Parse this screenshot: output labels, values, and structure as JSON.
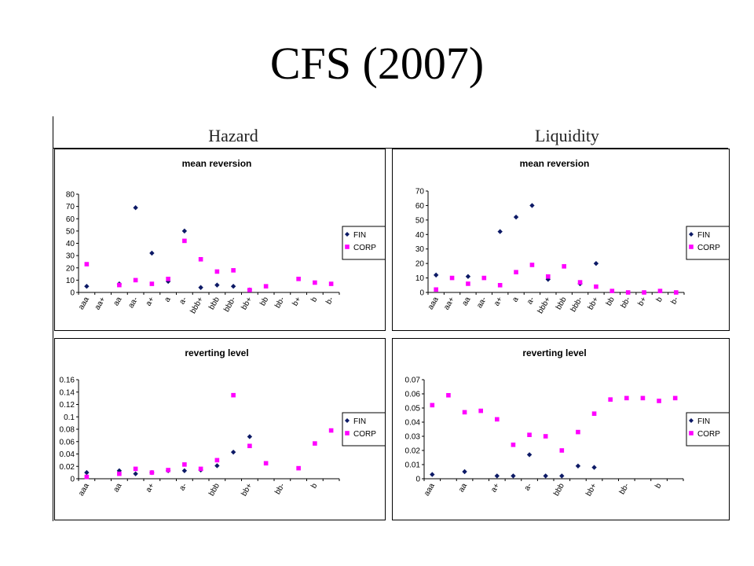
{
  "slide_title": "CFS (2007)",
  "columns": [
    "Hazard",
    "Liquidity"
  ],
  "colors": {
    "FIN": "#0d1a66",
    "CORP": "#ff00ff"
  },
  "chart_data": [
    {
      "id": "hazard-mean-reversion",
      "type": "scatter",
      "title": "mean reversion",
      "categories": [
        "aaa",
        "aa+",
        "aa",
        "aa-",
        "a+",
        "a",
        "a-",
        "bbb+",
        "bbb",
        "bbb-",
        "bb+",
        "bb",
        "bb-",
        "b+",
        "b",
        "b-"
      ],
      "ylim": [
        0,
        80
      ],
      "yticks": [
        0,
        10,
        20,
        30,
        40,
        50,
        60,
        70,
        80
      ],
      "ytick_labels": [
        "0",
        "10",
        "20",
        "30",
        "40",
        "50",
        "60",
        "70",
        "80"
      ],
      "series": [
        {
          "name": "FIN",
          "values": [
            5,
            null,
            7,
            69,
            32,
            9,
            50,
            4,
            6,
            5,
            2,
            null,
            null,
            null,
            null,
            null
          ]
        },
        {
          "name": "CORP",
          "values": [
            23,
            null,
            6,
            10,
            7,
            11,
            42,
            27,
            17,
            18,
            2,
            5,
            null,
            11,
            8,
            7
          ]
        }
      ],
      "legend": "right"
    },
    {
      "id": "liquidity-mean-reversion",
      "type": "scatter",
      "title": "mean reversion",
      "categories": [
        "aaa",
        "aa+",
        "aa",
        "aa-",
        "a+",
        "a",
        "a-",
        "bbb+",
        "bbb",
        "bbb-",
        "bb+",
        "bb",
        "bb-",
        "b+",
        "b",
        "b-"
      ],
      "ylim": [
        0,
        70
      ],
      "yticks": [
        0,
        10,
        20,
        30,
        40,
        50,
        60,
        70
      ],
      "ytick_labels": [
        "0",
        "10",
        "20",
        "30",
        "40",
        "50",
        "60",
        "70"
      ],
      "series": [
        {
          "name": "FIN",
          "values": [
            12,
            null,
            11,
            null,
            42,
            52,
            60,
            9,
            null,
            6,
            20,
            null,
            null,
            null,
            null,
            null
          ]
        },
        {
          "name": "CORP",
          "values": [
            2,
            10,
            6,
            10,
            5,
            14,
            19,
            11,
            18,
            7,
            4,
            1,
            0,
            0,
            1,
            0
          ]
        }
      ],
      "legend": "right"
    },
    {
      "id": "hazard-reverting-level",
      "type": "scatter",
      "title": "reverting level",
      "categories": [
        "aaa",
        "aa+",
        "aa",
        "aa-",
        "a+",
        "a",
        "a-",
        "bbb+",
        "bbb",
        "bbb-",
        "bb+",
        "bb",
        "bb-",
        "b+",
        "b",
        "b-"
      ],
      "xtick_labels": [
        "aaa",
        "",
        "aa",
        "",
        "a+",
        "",
        "a-",
        "",
        "bbb",
        "",
        "bb+",
        "",
        "bb-",
        "",
        "b",
        ""
      ],
      "ylim": [
        0,
        0.16
      ],
      "yticks": [
        0,
        0.02,
        0.04,
        0.06,
        0.08,
        0.1,
        0.12,
        0.14,
        0.16
      ],
      "ytick_labels": [
        "0",
        "0.02",
        "0.04",
        "0.06",
        "0.08",
        "0.1",
        "0.12",
        "0.14",
        "0.16"
      ],
      "series": [
        {
          "name": "FIN",
          "values": [
            0.01,
            null,
            0.013,
            0.008,
            0.01,
            0.013,
            0.013,
            0.014,
            0.021,
            0.043,
            0.068,
            null,
            null,
            null,
            null,
            null
          ]
        },
        {
          "name": "CORP",
          "values": [
            0.003,
            null,
            0.008,
            0.016,
            0.01,
            0.014,
            0.023,
            0.016,
            0.03,
            0.135,
            0.053,
            0.025,
            null,
            0.017,
            0.057,
            0.078
          ]
        }
      ],
      "legend": "right"
    },
    {
      "id": "liquidity-reverting-level",
      "type": "scatter",
      "title": "reverting level",
      "categories": [
        "aaa",
        "aa+",
        "aa",
        "aa-",
        "a+",
        "a",
        "a-",
        "bbb+",
        "bbb",
        "bbb-",
        "bb+",
        "bb",
        "bb-",
        "b+",
        "b",
        "b-"
      ],
      "xtick_labels": [
        "aaa",
        "",
        "aa",
        "",
        "a+",
        "",
        "a-",
        "",
        "bbb",
        "",
        "bb+",
        "",
        "bb-",
        "",
        "b",
        ""
      ],
      "ylim": [
        0,
        0.07
      ],
      "yticks": [
        0,
        0.01,
        0.02,
        0.03,
        0.04,
        0.05,
        0.06,
        0.07
      ],
      "ytick_labels": [
        "0",
        "0.01",
        "0.02",
        "0.03",
        "0.04",
        "0.05",
        "0.06",
        "0.07"
      ],
      "series": [
        {
          "name": "FIN",
          "values": [
            0.003,
            null,
            0.005,
            null,
            0.002,
            0.002,
            0.017,
            0.002,
            0.002,
            0.009,
            0.008,
            null,
            null,
            null,
            null,
            null
          ]
        },
        {
          "name": "CORP",
          "values": [
            0.052,
            0.059,
            0.047,
            0.048,
            0.042,
            0.024,
            0.031,
            0.03,
            0.02,
            0.033,
            0.046,
            0.056,
            0.057,
            0.057,
            0.055,
            0.057
          ]
        }
      ],
      "legend": "right"
    }
  ]
}
